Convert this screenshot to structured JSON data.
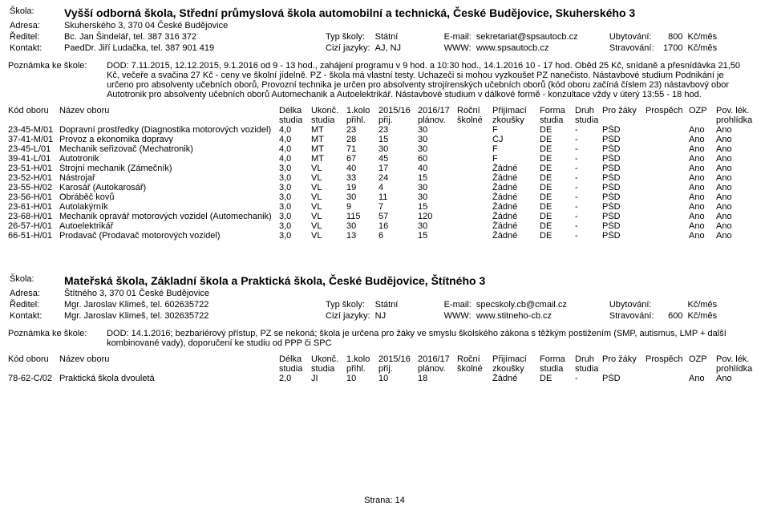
{
  "labels": {
    "skola": "Škola:",
    "adresa": "Adresa:",
    "reditel": "Ředitel:",
    "kontakt": "Kontakt:",
    "typ": "Typ školy:",
    "statni": "Státní",
    "email": "E-mail:",
    "jazyky": "Cizí jazyky:",
    "www": "WWW:",
    "ubyt": "Ubytování:",
    "strav": "Stravování:",
    "kcmes": "Kč/měs",
    "note_lbl": "Poznámka ke škole:",
    "h_kod": "Kód oboru",
    "h_naz": "Název oboru",
    "h_del1": "Délka",
    "h_del2": "studia",
    "h_uk1": "Ukonč.",
    "h_uk2": "studia",
    "h_k1a": "1.kolo",
    "h_k1b": "přihl.",
    "h_k2a": "2015/16",
    "h_k2b": "přij.",
    "h_pla": "2016/17",
    "h_plb": "plánov.",
    "h_ska": "Roční",
    "h_skb": "školné",
    "h_zka": "Přijímací",
    "h_zkb": "zkoušky",
    "h_foa": "Forma",
    "h_fob": "studia",
    "h_dra": "Druh",
    "h_drb": "studia",
    "h_pz": "Pro žáky",
    "h_pr": "Prospěch",
    "h_ozp": "OZP",
    "h_leka": "Pov. lék.",
    "h_lekb": "prohlídka",
    "footer": "Strana: 14"
  },
  "school1": {
    "title": "Vyšší odborná škola, Střední průmyslová škola automobilní a technická, České Budějovice, Skuherského 3",
    "adresa": "Skuherského 3, 370 04  České Budějovice",
    "reditel": "Bc. Jan Šindelář, tel. 387 316 372",
    "kontakt": "PaedDr. Jiří Ludačka, tel. 387 901 419",
    "email": "sekretariat@spsautocb.cz",
    "jazyky": "AJ, NJ",
    "www": "www.spsautocb.cz",
    "ubyt": "800",
    "strav": "1700",
    "note": "DOD: 7.11.2015, 12.12.2015, 9.1.2016 od 9 - 13 hod., zahájení programu v 9 hod. a 10:30 hod., 14.1.2016 10 - 17 hod. Oběd 25 Kč, snídaně a přesnídávka 21,50 Kč, večeře a svačina 27 Kč - ceny ve školní jídelně. PZ - škola má vlastní testy. Uchazeči si mohou vyzkoušet PZ nanečisto. Nástavbové studium Podnikání je určeno pro absolventy učebních oborů, Provozní technika je určen pro absolventy strojírenských učebních oborů (kód oboru začíná číslem 23) nástavbový obor Autotronik pro absolventy učebních oborů Automechanik a Autoelektrikář. Nástavbové studium v dálkové formě - konzultace vždy v úterý 13:55 - 18 hod.",
    "rows": [
      {
        "kod": "23-45-M/01",
        "naz": "Dopravní prostředky (Diagnostika motorových vozidel)",
        "del": "4,0",
        "uk": "MT",
        "k1": "23",
        "k2": "23",
        "pl": "30",
        "sk": "",
        "zk": "F",
        "fo": "DE",
        "dr": "-",
        "pz": "PŠD",
        "pr": "",
        "ozp": "Ano",
        "lek": "Ano"
      },
      {
        "kod": "37-41-M/01",
        "naz": "Provoz a ekonomika dopravy",
        "del": "4,0",
        "uk": "MT",
        "k1": "28",
        "k2": "15",
        "pl": "30",
        "sk": "",
        "zk": "ČJ",
        "fo": "DE",
        "dr": "-",
        "pz": "PŠD",
        "pr": "",
        "ozp": "Ano",
        "lek": "Ano"
      },
      {
        "kod": "23-45-L/01",
        "naz": "Mechanik seřizovač (Mechatronik)",
        "del": "4,0",
        "uk": "MT",
        "k1": "71",
        "k2": "30",
        "pl": "30",
        "sk": "",
        "zk": "F",
        "fo": "DE",
        "dr": "-",
        "pz": "PŠD",
        "pr": "",
        "ozp": "Ano",
        "lek": "Ano"
      },
      {
        "kod": "39-41-L/01",
        "naz": "Autotronik",
        "del": "4,0",
        "uk": "MT",
        "k1": "67",
        "k2": "45",
        "pl": "60",
        "sk": "",
        "zk": "F",
        "fo": "DE",
        "dr": "-",
        "pz": "PŠD",
        "pr": "",
        "ozp": "Ano",
        "lek": "Ano"
      },
      {
        "kod": "23-51-H/01",
        "naz": "Strojní mechanik (Zámečník)",
        "del": "3,0",
        "uk": "VL",
        "k1": "40",
        "k2": "17",
        "pl": "40",
        "sk": "",
        "zk": "Žádné",
        "fo": "DE",
        "dr": "-",
        "pz": "PŠD",
        "pr": "",
        "ozp": "Ano",
        "lek": "Ano"
      },
      {
        "kod": "23-52-H/01",
        "naz": "Nástrojař",
        "del": "3,0",
        "uk": "VL",
        "k1": "33",
        "k2": "24",
        "pl": "15",
        "sk": "",
        "zk": "Žádné",
        "fo": "DE",
        "dr": "-",
        "pz": "PŠD",
        "pr": "",
        "ozp": "Ano",
        "lek": "Ano"
      },
      {
        "kod": "23-55-H/02",
        "naz": "Karosář (Autokarosář)",
        "del": "3,0",
        "uk": "VL",
        "k1": "19",
        "k2": "4",
        "pl": "30",
        "sk": "",
        "zk": "Žádné",
        "fo": "DE",
        "dr": "-",
        "pz": "PŠD",
        "pr": "",
        "ozp": "Ano",
        "lek": "Ano"
      },
      {
        "kod": "23-56-H/01",
        "naz": "Obráběč kovů",
        "del": "3,0",
        "uk": "VL",
        "k1": "30",
        "k2": "11",
        "pl": "30",
        "sk": "",
        "zk": "Žádné",
        "fo": "DE",
        "dr": "-",
        "pz": "PŠD",
        "pr": "",
        "ozp": "Ano",
        "lek": "Ano"
      },
      {
        "kod": "23-61-H/01",
        "naz": "Autolakýrník",
        "del": "3,0",
        "uk": "VL",
        "k1": "9",
        "k2": "7",
        "pl": "15",
        "sk": "",
        "zk": "Žádné",
        "fo": "DE",
        "dr": "-",
        "pz": "PŠD",
        "pr": "",
        "ozp": "Ano",
        "lek": "Ano"
      },
      {
        "kod": "23-68-H/01",
        "naz": "Mechanik opravář motorových vozidel (Automechanik)",
        "del": "3,0",
        "uk": "VL",
        "k1": "115",
        "k2": "57",
        "pl": "120",
        "sk": "",
        "zk": "Žádné",
        "fo": "DE",
        "dr": "-",
        "pz": "PŠD",
        "pr": "",
        "ozp": "Ano",
        "lek": "Ano"
      },
      {
        "kod": "26-57-H/01",
        "naz": "Autoelektrikář",
        "del": "3,0",
        "uk": "VL",
        "k1": "30",
        "k2": "16",
        "pl": "30",
        "sk": "",
        "zk": "Žádné",
        "fo": "DE",
        "dr": "-",
        "pz": "PŠD",
        "pr": "",
        "ozp": "Ano",
        "lek": "Ano"
      },
      {
        "kod": "66-51-H/01",
        "naz": "Prodavač (Prodavač motorových vozidel)",
        "del": "3,0",
        "uk": "VL",
        "k1": "13",
        "k2": "6",
        "pl": "15",
        "sk": "",
        "zk": "Žádné",
        "fo": "DE",
        "dr": "-",
        "pz": "PŠD",
        "pr": "",
        "ozp": "Ano",
        "lek": "Ano"
      }
    ]
  },
  "school2": {
    "title": "Mateřská škola, Základní škola a Praktická škola, České Budějovice, Štítného 3",
    "adresa": "Štítného 3, 370 01  České Budějovice",
    "reditel": "Mgr. Jaroslav Klimeš, tel. 602635722",
    "kontakt": "Mgr. Jaroslav Klimeš, tel. 302635722",
    "email": "specskoly.cb@cmail.cz",
    "jazyky": "NJ",
    "www": "www.stitneho-cb.cz",
    "ubyt": "",
    "strav": "600",
    "note": "DOD: 14.1.2016; bezbariérový přístup, PZ se nekoná; škola je určena pro žáky ve smyslu školského zákona s těžkým postižením (SMP, autismus, LMP + další kombinované vady), doporučení ke studiu od PPP či SPC",
    "rows": [
      {
        "kod": "78-62-C/02",
        "naz": "Praktická škola dvouletá",
        "del": "2,0",
        "uk": "JI",
        "k1": "10",
        "k2": "10",
        "pl": "18",
        "sk": "",
        "zk": "Žádné",
        "fo": "DE",
        "dr": "-",
        "pz": "PŠD",
        "pr": "",
        "ozp": "Ano",
        "lek": "Ano"
      }
    ]
  }
}
